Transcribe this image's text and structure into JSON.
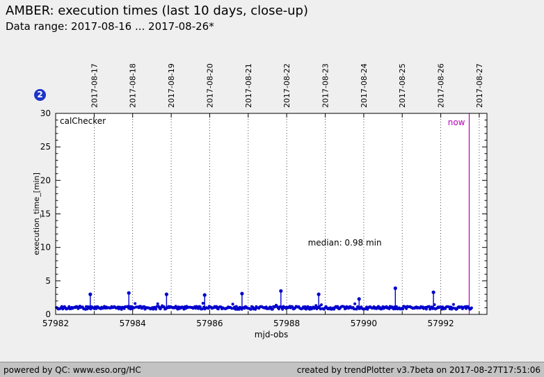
{
  "header": {
    "title": "AMBER: execution times (last 10 days, close-up)",
    "subtitle": "Data range: 2017-08-16 ... 2017-08-26*"
  },
  "badge": {
    "label": "2",
    "color": "#1c35c8"
  },
  "footer": {
    "left": "powered by QC: www.eso.org/HC",
    "right": "created by trendPlotter v3.7beta on 2017-08-27T17:51:06"
  },
  "chart_data": {
    "type": "scatter",
    "title": "AMBER: execution times (last 10 days, close-up)",
    "xlabel": "mjd-obs",
    "ylabel": "execution_time_[min]",
    "xlim": [
      57982,
      57993.2
    ],
    "ylim": [
      0,
      30
    ],
    "x_ticks": [
      57982,
      57984,
      57986,
      57988,
      57990,
      57992
    ],
    "x_minor_ticks": [
      57983,
      57985,
      57987,
      57989,
      57991,
      57993
    ],
    "y_ticks": [
      0,
      5,
      10,
      15,
      20,
      25,
      30
    ],
    "grid": "vertical-dotted-at-dates",
    "legend_position": "none",
    "top_axis_dates": [
      {
        "mjd": 57983,
        "label": "2017-08-17"
      },
      {
        "mjd": 57984,
        "label": "2017-08-18"
      },
      {
        "mjd": 57985,
        "label": "2017-08-19"
      },
      {
        "mjd": 57986,
        "label": "2017-08-20"
      },
      {
        "mjd": 57987,
        "label": "2017-08-21"
      },
      {
        "mjd": 57988,
        "label": "2017-08-22"
      },
      {
        "mjd": 57989,
        "label": "2017-08-23"
      },
      {
        "mjd": 57990,
        "label": "2017-08-24"
      },
      {
        "mjd": 57991,
        "label": "2017-08-25"
      },
      {
        "mjd": 57992,
        "label": "2017-08-26"
      },
      {
        "mjd": 57993,
        "label": "2017-08-27"
      }
    ],
    "annotations": {
      "dataset_label": "calChecker",
      "median_label": "median: 0.98 min",
      "median_label_xy": [
        57988.55,
        10.3
      ],
      "now_label": "now",
      "now_mjd": 57992.74,
      "now_color": "#b400b4"
    },
    "series": [
      {
        "name": "execution_time",
        "color": "#0000cd",
        "median_min": 0.98,
        "band": {
          "x_start": 57982.02,
          "x_end": 57992.8,
          "y_center": 0.98,
          "y_spread": 0.45,
          "n_points": 460
        },
        "spikes": [
          [
            57982.9,
            3.0
          ],
          [
            57983.9,
            3.2
          ],
          [
            57984.88,
            3.0
          ],
          [
            57985.87,
            2.9
          ],
          [
            57986.84,
            3.1
          ],
          [
            57987.85,
            3.5
          ],
          [
            57988.83,
            3.0
          ],
          [
            57989.88,
            2.3
          ],
          [
            57990.82,
            3.9
          ],
          [
            57991.81,
            3.3
          ]
        ]
      }
    ]
  }
}
